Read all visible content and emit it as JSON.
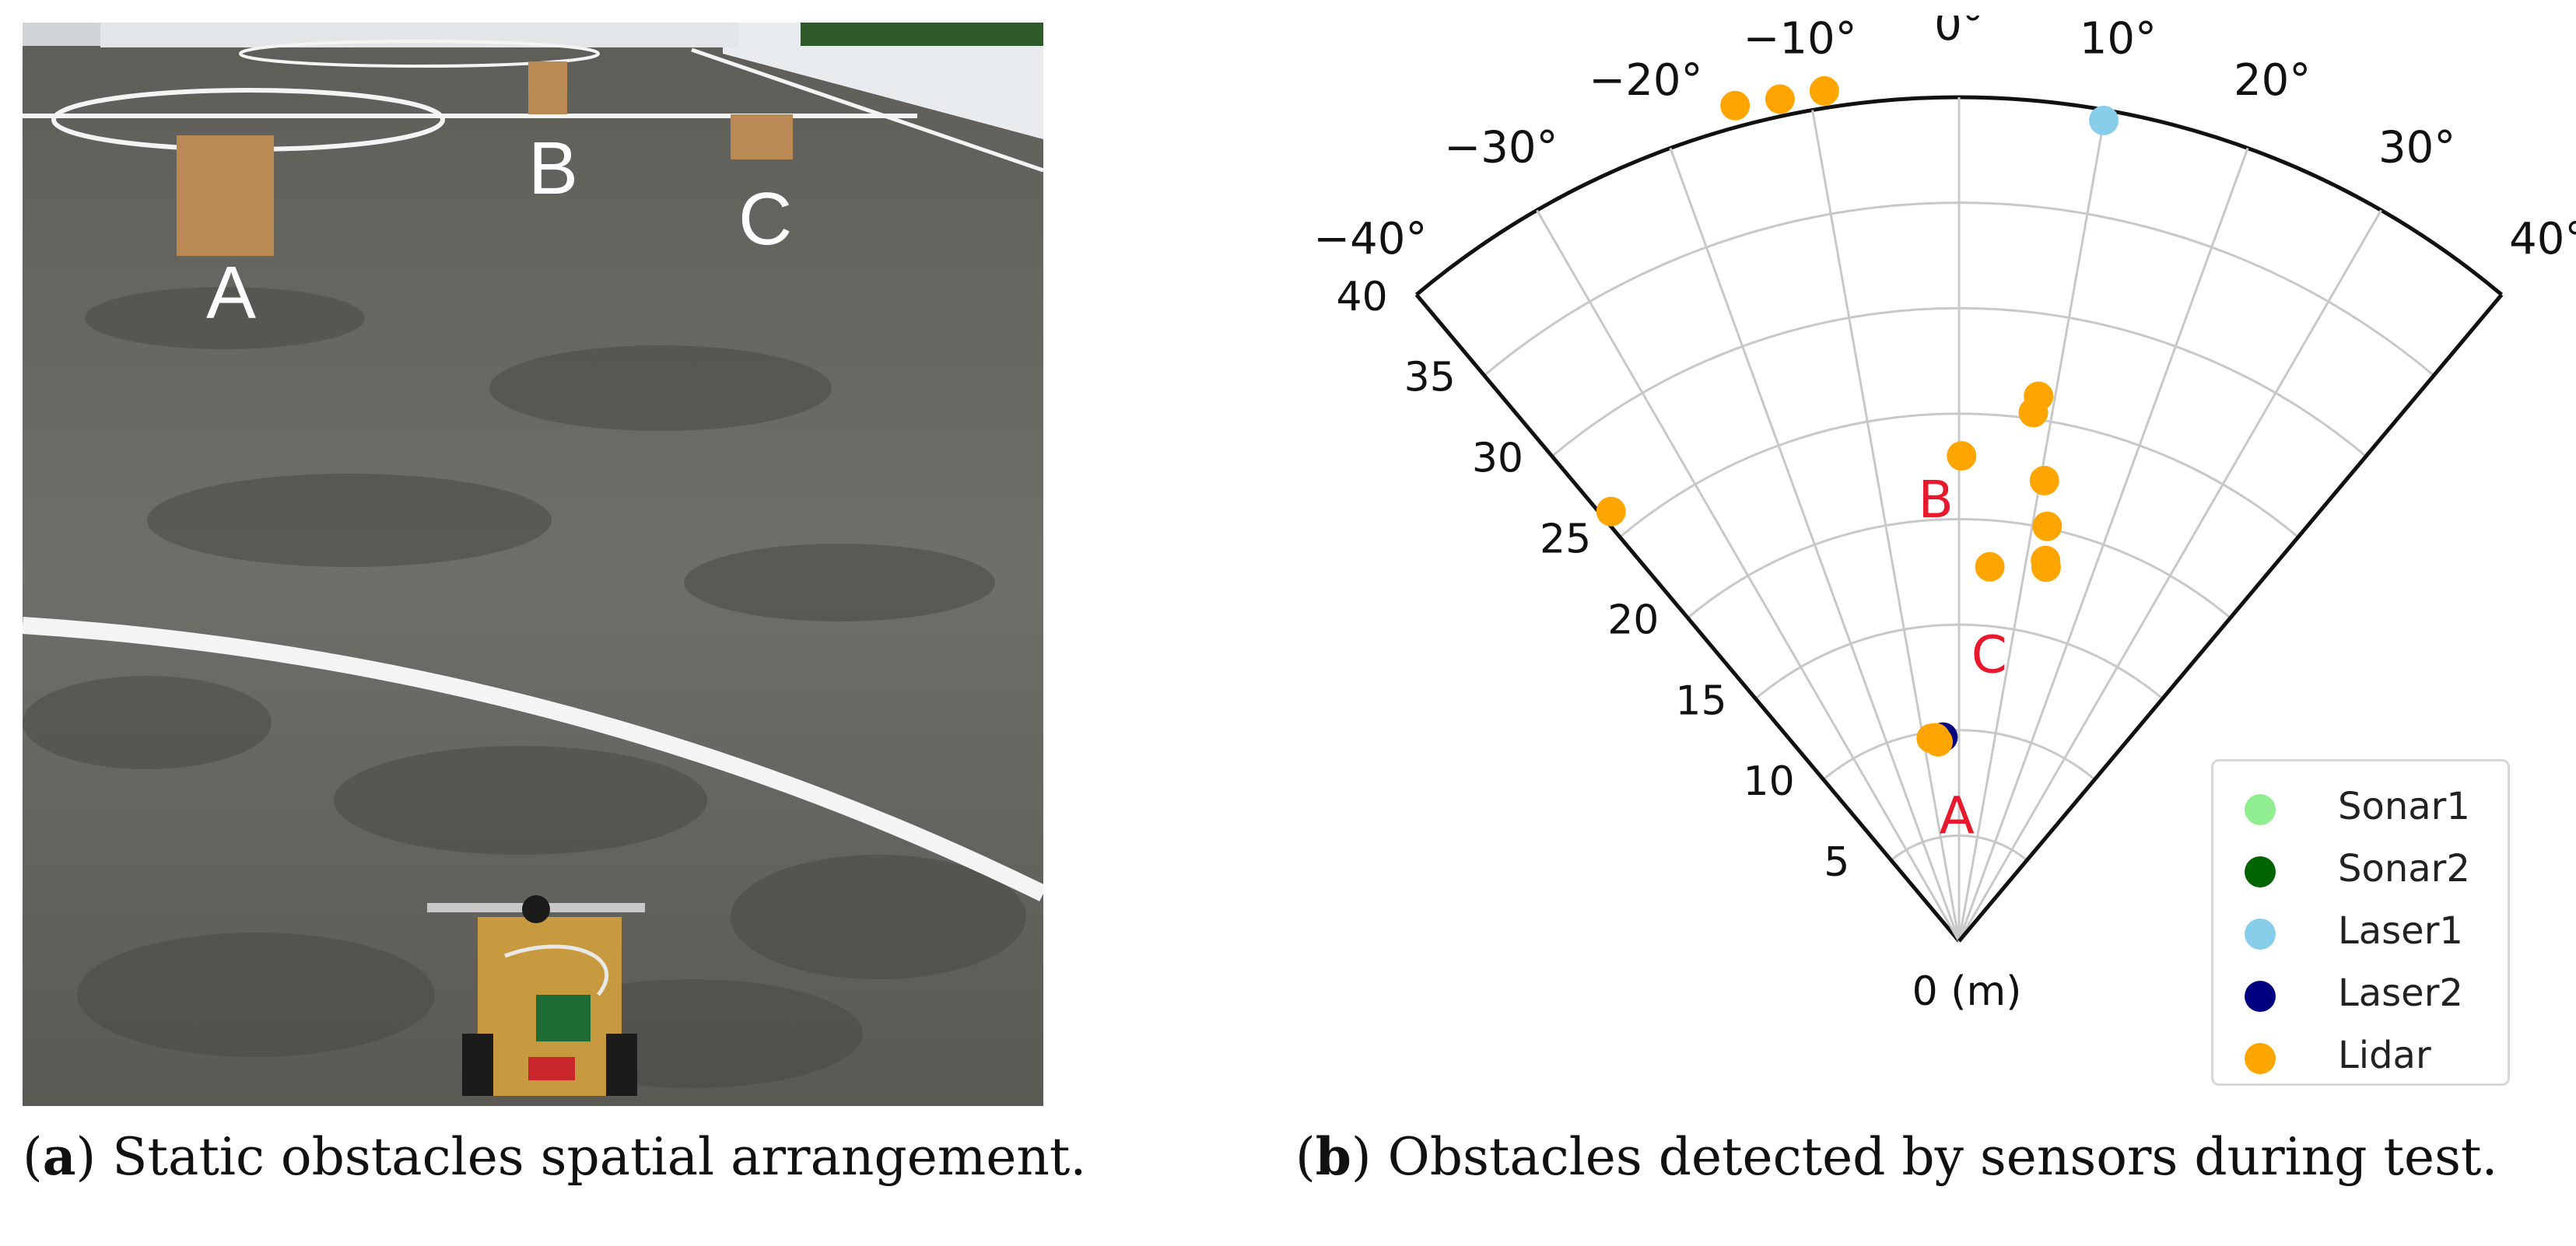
{
  "photo": {
    "obstacle_labels": [
      "A",
      "B",
      "C"
    ],
    "description_colors": {
      "ground": "#6f6e68",
      "cardboard": "#b98a54",
      "line": "#f4f4f4",
      "wall": "#e9ecef"
    }
  },
  "captions": {
    "a_tag": "a",
    "a_text": " Static obstacles spatial arrangement.",
    "b_tag": "b",
    "b_text": " Obstacles detected by sensors during test."
  },
  "chart_data": {
    "type": "scatter",
    "projection": "polar",
    "theta_direction": "clockwise-from-up",
    "theta_range_deg": [
      -40,
      40
    ],
    "theta_ticks": [
      "−40°",
      "−30°",
      "−20°",
      "−10°",
      "0°",
      "10°",
      "20°",
      "30°",
      "40°"
    ],
    "theta_tick_values": [
      -40,
      -30,
      -20,
      -10,
      0,
      10,
      20,
      30,
      40
    ],
    "r_range": [
      0,
      40
    ],
    "r_ticks": [
      "0 (m)",
      "5",
      "10",
      "15",
      "20",
      "25",
      "30",
      "35",
      "40"
    ],
    "r_tick_values": [
      0,
      5,
      10,
      15,
      20,
      25,
      30,
      35,
      40
    ],
    "grid": true,
    "legend_position": "bottom-right",
    "series": [
      {
        "name": "Sonar1",
        "color": "#90ee90",
        "points": []
      },
      {
        "name": "Sonar2",
        "color": "#006400",
        "points": []
      },
      {
        "name": "Laser1",
        "color": "#87ceeb",
        "points": [
          [
            10,
            39.5
          ]
        ]
      },
      {
        "name": "Laser2",
        "color": "#000080",
        "points": [
          [
            -4.5,
            9.7
          ]
        ]
      },
      {
        "name": "Lidar",
        "color": "#ffa500",
        "points": [
          [
            -15,
            41
          ],
          [
            -12,
            40.8
          ],
          [
            -9,
            40.8
          ],
          [
            -39,
            26.2
          ],
          [
            0.3,
            23
          ],
          [
            8,
            25.3
          ],
          [
            8.3,
            26.1
          ],
          [
            10.5,
            22.2
          ],
          [
            12,
            20.1
          ],
          [
            12.8,
            18.5
          ],
          [
            13.1,
            18.2
          ],
          [
            4.7,
            17.8
          ],
          [
            -7.8,
            9.7
          ],
          [
            -6.6,
            9.7
          ],
          [
            -6,
            9.5
          ]
        ]
      }
    ],
    "annotations": [
      {
        "text": "A",
        "theta": -1,
        "r": 6
      },
      {
        "text": "B",
        "theta": -3,
        "r": 21
      },
      {
        "text": "C",
        "theta": 6,
        "r": 13.7
      }
    ]
  }
}
